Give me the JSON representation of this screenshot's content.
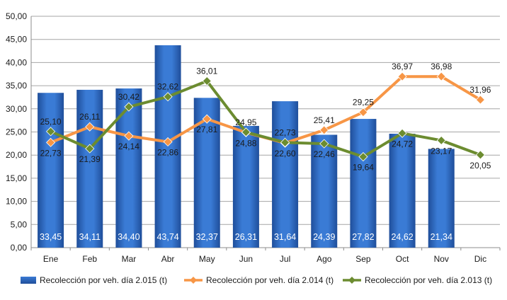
{
  "chart_data": {
    "type": "bar",
    "categories": [
      "Ene",
      "Feb",
      "Mar",
      "Abr",
      "May",
      "Jun",
      "Jul",
      "Ago",
      "Sep",
      "Oct",
      "Nov",
      "Dic"
    ],
    "ylim": [
      0,
      50
    ],
    "yticks": [
      0,
      5,
      10,
      15,
      20,
      25,
      30,
      35,
      40,
      45,
      50
    ],
    "ytick_labels": [
      "0,00",
      "5,00",
      "10,00",
      "15,00",
      "20,00",
      "25,00",
      "30,00",
      "35,00",
      "40,00",
      "45,00",
      "50,00"
    ],
    "grid": true,
    "legend_position": "bottom",
    "series": [
      {
        "name": "Recolección por veh. día 2.015 (t)",
        "kind": "bar",
        "color": "#2F6BC2",
        "values": [
          33.45,
          34.11,
          34.4,
          43.74,
          32.37,
          26.31,
          31.64,
          24.39,
          27.82,
          24.62,
          21.34,
          null
        ],
        "labels": [
          "33,45",
          "34,11",
          "34,40",
          "43,74",
          "32,37",
          "26,31",
          "31,64",
          "24,39",
          "27,82",
          "24,62",
          "21,34",
          ""
        ]
      },
      {
        "name": "Recolección por veh. día 2.014 (t)",
        "kind": "line",
        "color": "#F79646",
        "values": [
          22.73,
          26.11,
          24.14,
          22.86,
          27.81,
          24.88,
          22.6,
          25.41,
          29.25,
          36.97,
          36.98,
          31.96
        ],
        "labels": [
          "22,73",
          "26,11",
          "24,14",
          "22,86",
          "27,81",
          "24,88",
          "22,60",
          "25,41",
          "29,25",
          "36,97",
          "36,98",
          "31,96"
        ]
      },
      {
        "name": "Recolección por veh. día 2.013 (t)",
        "kind": "line",
        "color": "#6C8C30",
        "values": [
          25.1,
          21.39,
          30.42,
          32.62,
          36.01,
          24.95,
          22.73,
          22.46,
          19.64,
          24.72,
          23.17,
          20.05
        ],
        "labels": [
          "25,10",
          "21,39",
          "30,42",
          "32,62",
          "36,01",
          "24,95",
          "22,73",
          "22,46",
          "19,64",
          "24,72",
          "23,17",
          "20,05"
        ]
      }
    ]
  }
}
